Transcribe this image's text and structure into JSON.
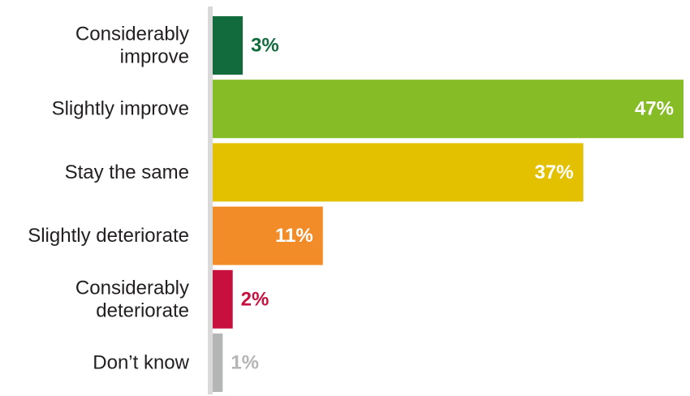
{
  "chart_data": {
    "type": "bar",
    "orientation": "horizontal",
    "title": "",
    "xlabel": "",
    "ylabel": "",
    "categories": [
      [
        "Considerably",
        "improve"
      ],
      [
        "Slightly improve"
      ],
      [
        "Stay the same"
      ],
      [
        "Slightly deteriorate"
      ],
      [
        "Considerably",
        "deteriorate"
      ],
      [
        "Don’t know"
      ]
    ],
    "values": [
      3,
      47,
      37,
      11,
      2,
      1
    ],
    "value_labels": [
      "3%",
      "47%",
      "37%",
      "11%",
      "2%",
      "1%"
    ],
    "xlim": [
      0,
      47
    ],
    "grid": false,
    "legend": "none",
    "colors": [
      "#116b3c",
      "#86bc25",
      "#e3c100",
      "#f28c28",
      "#c8103f",
      "#b4b5b5"
    ],
    "value_label_colors": [
      "#116b3c",
      "#ffffff",
      "#ffffff",
      "#ffffff",
      "#c8103f",
      "#b4b5b5"
    ],
    "value_label_position": [
      "outside",
      "inside",
      "inside",
      "inside",
      "outside",
      "outside"
    ],
    "axis_color": "#d9d9d9"
  }
}
